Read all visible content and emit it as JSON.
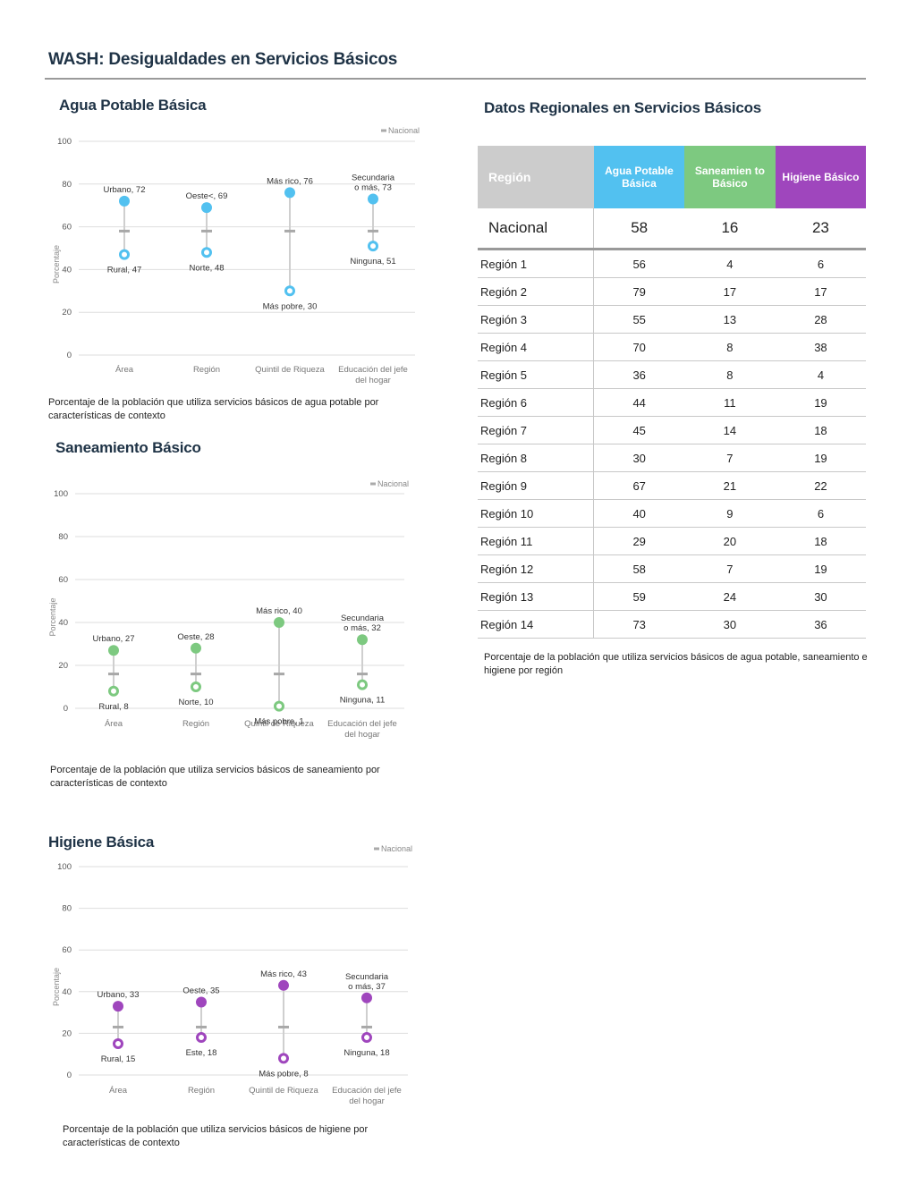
{
  "page_title": "WASH: Desigualdades en Servicios Básicos",
  "table": {
    "title": "Datos Regionales en Servicios Básicos",
    "headers": {
      "region": "Región",
      "agua": "Agua Potable Básica",
      "saneamiento": "Saneamien to Básico",
      "higiene": "Higiene Básico"
    },
    "national": {
      "label": "Nacional",
      "agua": "58",
      "saneamiento": "16",
      "higiene": "23"
    },
    "rows": [
      {
        "region": "Región 1",
        "agua": "56",
        "saneamiento": "4",
        "higiene": "6"
      },
      {
        "region": "Región 2",
        "agua": "79",
        "saneamiento": "17",
        "higiene": "17"
      },
      {
        "region": "Región 3",
        "agua": "55",
        "saneamiento": "13",
        "higiene": "28"
      },
      {
        "region": "Región 4",
        "agua": "70",
        "saneamiento": "8",
        "higiene": "38"
      },
      {
        "region": "Región 5",
        "agua": "36",
        "saneamiento": "8",
        "higiene": "4"
      },
      {
        "region": "Región 6",
        "agua": "44",
        "saneamiento": "11",
        "higiene": "19"
      },
      {
        "region": "Región 7",
        "agua": "45",
        "saneamiento": "14",
        "higiene": "18"
      },
      {
        "region": "Región 8",
        "agua": "30",
        "saneamiento": "7",
        "higiene": "19"
      },
      {
        "region": "Región 9",
        "agua": "67",
        "saneamiento": "21",
        "higiene": "22"
      },
      {
        "region": "Región 10",
        "agua": "40",
        "saneamiento": "9",
        "higiene": "6"
      },
      {
        "region": "Región 11",
        "agua": "29",
        "saneamiento": "20",
        "higiene": "18"
      },
      {
        "region": "Región 12",
        "agua": "58",
        "saneamiento": "7",
        "higiene": "19"
      },
      {
        "region": "Región 13",
        "agua": "59",
        "saneamiento": "24",
        "higiene": "30"
      },
      {
        "region": "Región 14",
        "agua": "73",
        "saneamiento": "30",
        "higiene": "36"
      }
    ],
    "caption": "Porcentaje de la población que utiliza servicios básicos de agua potable, saneamiento e higiene por región"
  },
  "chart_data": [
    {
      "type": "scatter",
      "title": "Agua Potable Básica",
      "ylabel": "Porcentaje",
      "ylim": [
        0,
        100
      ],
      "yticks": [
        0,
        20,
        40,
        60,
        80,
        100
      ],
      "legend": "Nacional",
      "color": "#52c1f0",
      "national": 58,
      "categories": [
        "Área",
        "Región",
        "Quintil de Riqueza",
        "Educación del jefe del hogar"
      ],
      "high": [
        {
          "label": "Urbano, 72",
          "value": 72
        },
        {
          "label": "Oeste<, 69",
          "value": 69
        },
        {
          "label": "Más rico, 76",
          "value": 76
        },
        {
          "label": "Secundaria o más, 73",
          "value": 73
        }
      ],
      "low": [
        {
          "label": "Rural, 47",
          "value": 47
        },
        {
          "label": "Norte, 48",
          "value": 48
        },
        {
          "label": "Más pobre, 30",
          "value": 30
        },
        {
          "label": "Ninguna, 51",
          "value": 51
        }
      ],
      "caption": "Porcentaje de la población que utiliza servicios básicos de agua potable por características de contexto"
    },
    {
      "type": "scatter",
      "title": "Saneamiento Básico",
      "ylabel": "Porcentaje",
      "ylim": [
        0,
        100
      ],
      "yticks": [
        0,
        20,
        40,
        60,
        80,
        100
      ],
      "legend": "Nacional",
      "color": "#7dc980",
      "national": 16,
      "categories": [
        "Área",
        "Región",
        "Quintil de Riqueza",
        "Educación del jefe del hogar"
      ],
      "high": [
        {
          "label": "Urbano, 27",
          "value": 27
        },
        {
          "label": "Oeste, 28",
          "value": 28
        },
        {
          "label": "Más rico, 40",
          "value": 40
        },
        {
          "label": "Secundaria o más, 32",
          "value": 32
        }
      ],
      "low": [
        {
          "label": "Rural, 8",
          "value": 8
        },
        {
          "label": "Norte, 10",
          "value": 10
        },
        {
          "label": "Más pobre, 1",
          "value": 1
        },
        {
          "label": "Ninguna, 11",
          "value": 11
        }
      ],
      "caption": "Porcentaje de la población que utiliza servicios básicos de saneamiento por características de contexto"
    },
    {
      "type": "scatter",
      "title": "Higiene Básica",
      "ylabel": "Porcentaje",
      "ylim": [
        0,
        100
      ],
      "yticks": [
        0,
        20,
        40,
        60,
        80,
        100
      ],
      "legend": "Nacional",
      "color": "#9f46bd",
      "national": 23,
      "categories": [
        "Área",
        "Región",
        "Quintil de Riqueza",
        "Educación del jefe del hogar"
      ],
      "high": [
        {
          "label": "Urbano, 33",
          "value": 33
        },
        {
          "label": "Oeste, 35",
          "value": 35
        },
        {
          "label": "Más rico, 43",
          "value": 43
        },
        {
          "label": "Secundaria o más, 37",
          "value": 37
        }
      ],
      "low": [
        {
          "label": "Rural, 15",
          "value": 15
        },
        {
          "label": "Este, 18",
          "value": 18
        },
        {
          "label": "Más pobre, 8",
          "value": 8
        },
        {
          "label": "Ninguna, 18",
          "value": 18
        }
      ],
      "caption": "Porcentaje de la población que utiliza servicios básicos de higiene por características de contexto"
    }
  ]
}
